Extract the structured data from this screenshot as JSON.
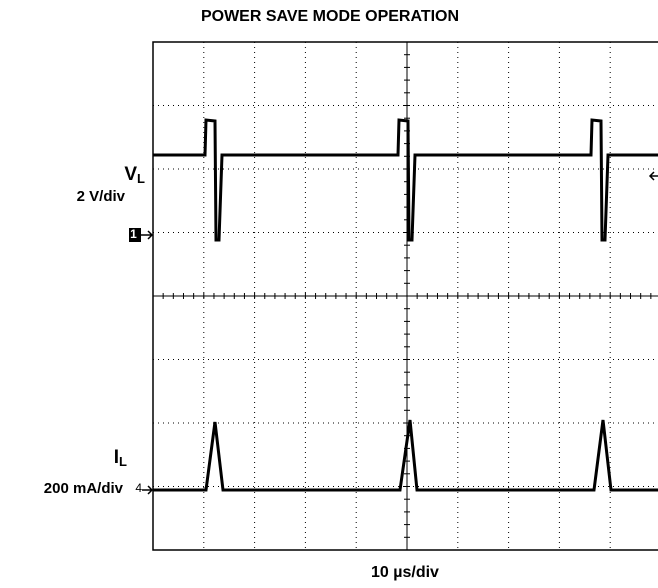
{
  "title": "POWER SAVE MODE OPERATION",
  "channels": [
    {
      "symbol": "V",
      "subscript": "L",
      "scale": "2 V/div",
      "marker": "1"
    },
    {
      "symbol": "I",
      "subscript": "L",
      "scale": "200 mA/div",
      "marker": "4"
    }
  ],
  "time_scale": "10 µs/div"
}
